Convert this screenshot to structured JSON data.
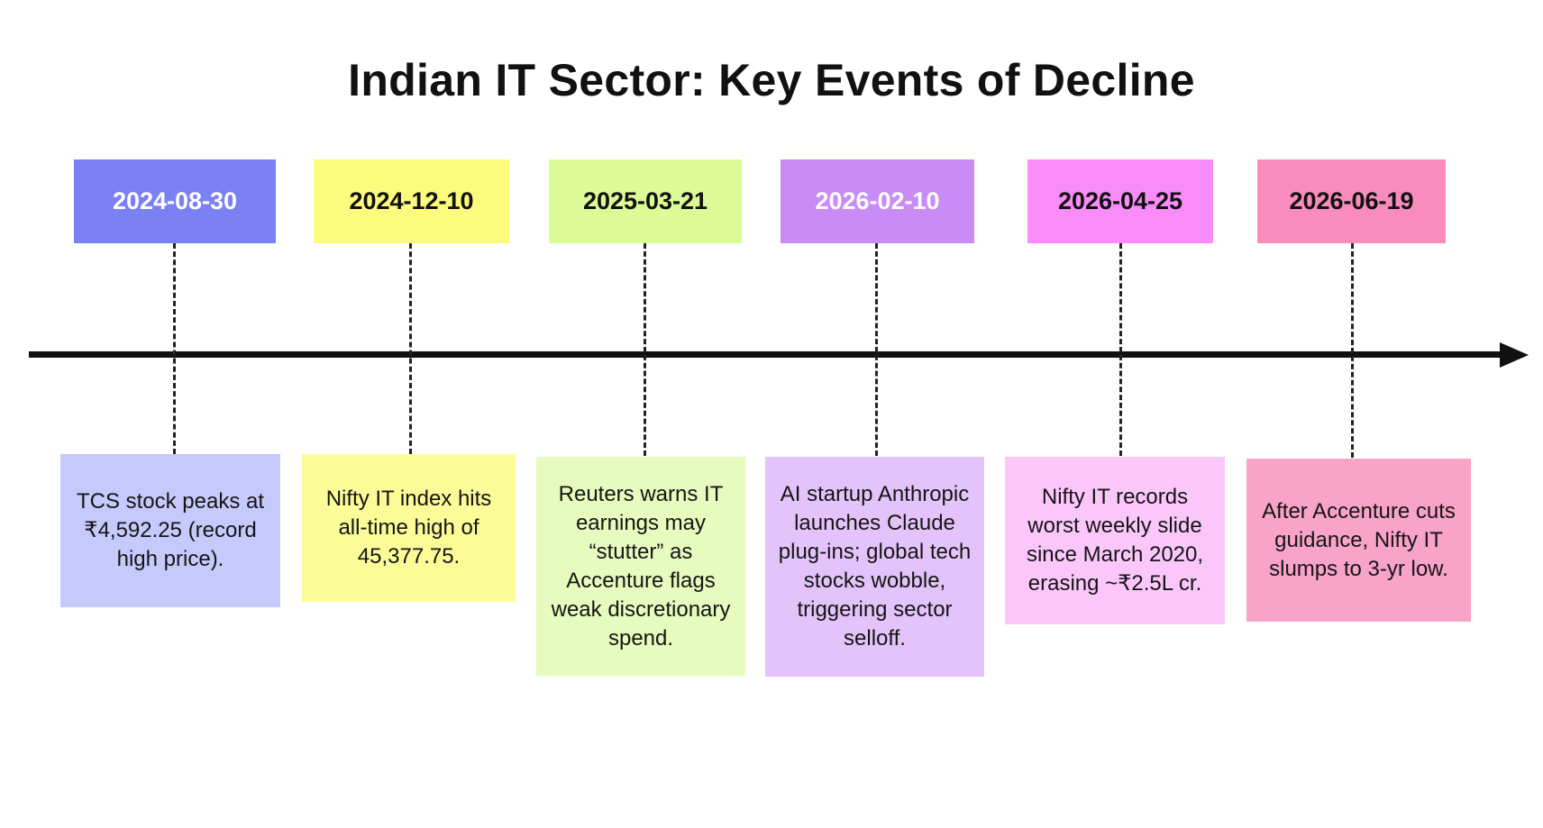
{
  "title": "Indian IT Sector: Key Events of Decline",
  "events": [
    {
      "date": "2024-08-30",
      "description": "TCS stock peaks at ₹4,592.25 (record high price).",
      "date_color": "#7b80f5",
      "date_text_color": "#ffffff",
      "desc_color": "#c6c9fb"
    },
    {
      "date": "2024-12-10",
      "description": "Nifty IT index hits all-time high of 45,377.75.",
      "date_color": "#fbfb7d",
      "date_text_color": "#111111",
      "desc_color": "#fbfb98"
    },
    {
      "date": "2025-03-21",
      "description": "Reuters warns IT earnings may “stutter” as Accenture flags weak discretionary spend.",
      "date_color": "#dbfb97",
      "date_text_color": "#111111",
      "desc_color": "#e6fbbd"
    },
    {
      "date": "2026-02-10",
      "description": "AI startup Anthropic launches Claude plug-ins; global tech stocks wobble, triggering sector selloff.",
      "date_color": "#c98bf5",
      "date_text_color": "#ffffff",
      "desc_color": "#e3c3f9"
    },
    {
      "date": "2026-04-25",
      "description": "Nifty IT records worst weekly slide since March 2020, erasing ~₹2.5L cr.",
      "date_color": "#f98cf9",
      "date_text_color": "#111111",
      "desc_color": "#fbc7fb"
    },
    {
      "date": "2026-06-19",
      "description": "After Accenture cuts guidance, Nifty IT slumps to 3-yr low.",
      "date_color": "#f98cbd",
      "date_text_color": "#111111",
      "desc_color": "#f9a3c8"
    }
  ]
}
